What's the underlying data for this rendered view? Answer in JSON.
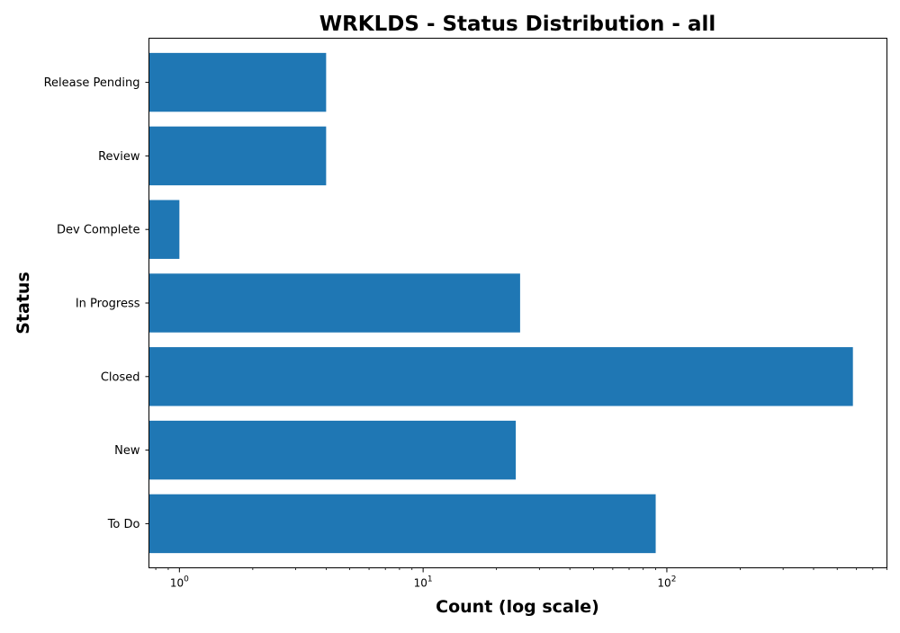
{
  "chart_data": {
    "type": "bar",
    "orientation": "horizontal",
    "title": "WRKLDS - Status Distribution - all",
    "xlabel": "Count (log scale)",
    "ylabel": "Status",
    "x_scale": "log",
    "xlim": [
      0.75,
      800
    ],
    "x_major_ticks": [
      1,
      10,
      100
    ],
    "x_tick_labels": [
      {
        "base": "10",
        "exp": "0"
      },
      {
        "base": "10",
        "exp": "1"
      },
      {
        "base": "10",
        "exp": "2"
      }
    ],
    "categories": [
      "To Do",
      "New",
      "Closed",
      "In Progress",
      "Dev Complete",
      "Review",
      "Release Pending"
    ],
    "values": [
      90,
      24,
      580,
      25,
      1,
      4,
      4
    ],
    "color": "#1f77b4",
    "grid": false,
    "legend": false
  }
}
